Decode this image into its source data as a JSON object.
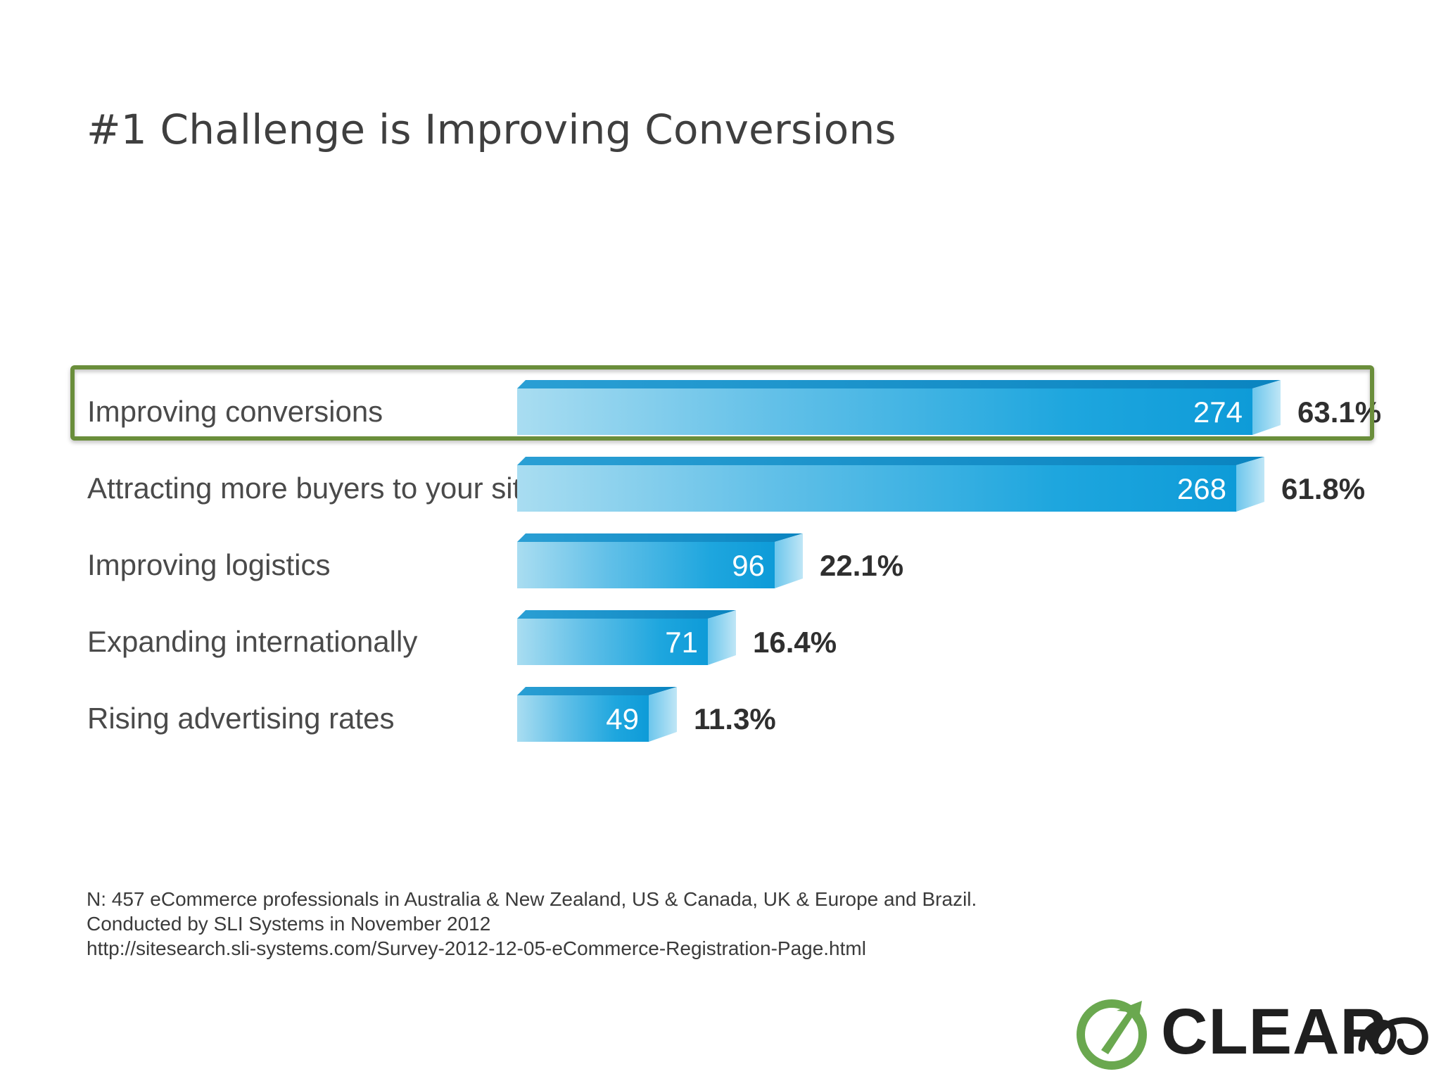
{
  "slide": {
    "title": "#1 Challenge is Improving Conversions",
    "footnote_lines": [
      "N: 457 eCommerce professionals in Australia & New Zealand, US & Canada, UK & Europe and Brazil.",
      "Conducted by SLI Systems in November 2012",
      "http://sitesearch.sli-systems.com/Survey-2012-12-05-eCommerce-Registration-Page.html"
    ],
    "logo": {
      "text": "CLEAR",
      "icon": "clear-go-arrow-icon",
      "accent": "#6aa84f"
    },
    "highlight_color": "#6b8e3a"
  },
  "chart_data": {
    "type": "bar",
    "orientation": "horizontal",
    "title": "",
    "xlabel": "",
    "ylabel": "",
    "categories": [
      "Improving conversions",
      "Attracting more buyers to your site",
      "Improving logistics",
      "Expanding internationally",
      "Rising advertising rates"
    ],
    "values": [
      274,
      268,
      96,
      71,
      49
    ],
    "percent_labels": [
      "63.1%",
      "61.8%",
      "22.1%",
      "16.4%",
      "11.3%"
    ],
    "highlighted_index": 0,
    "bar_color": "#1ba3dc",
    "grid": false,
    "legend": "none"
  }
}
